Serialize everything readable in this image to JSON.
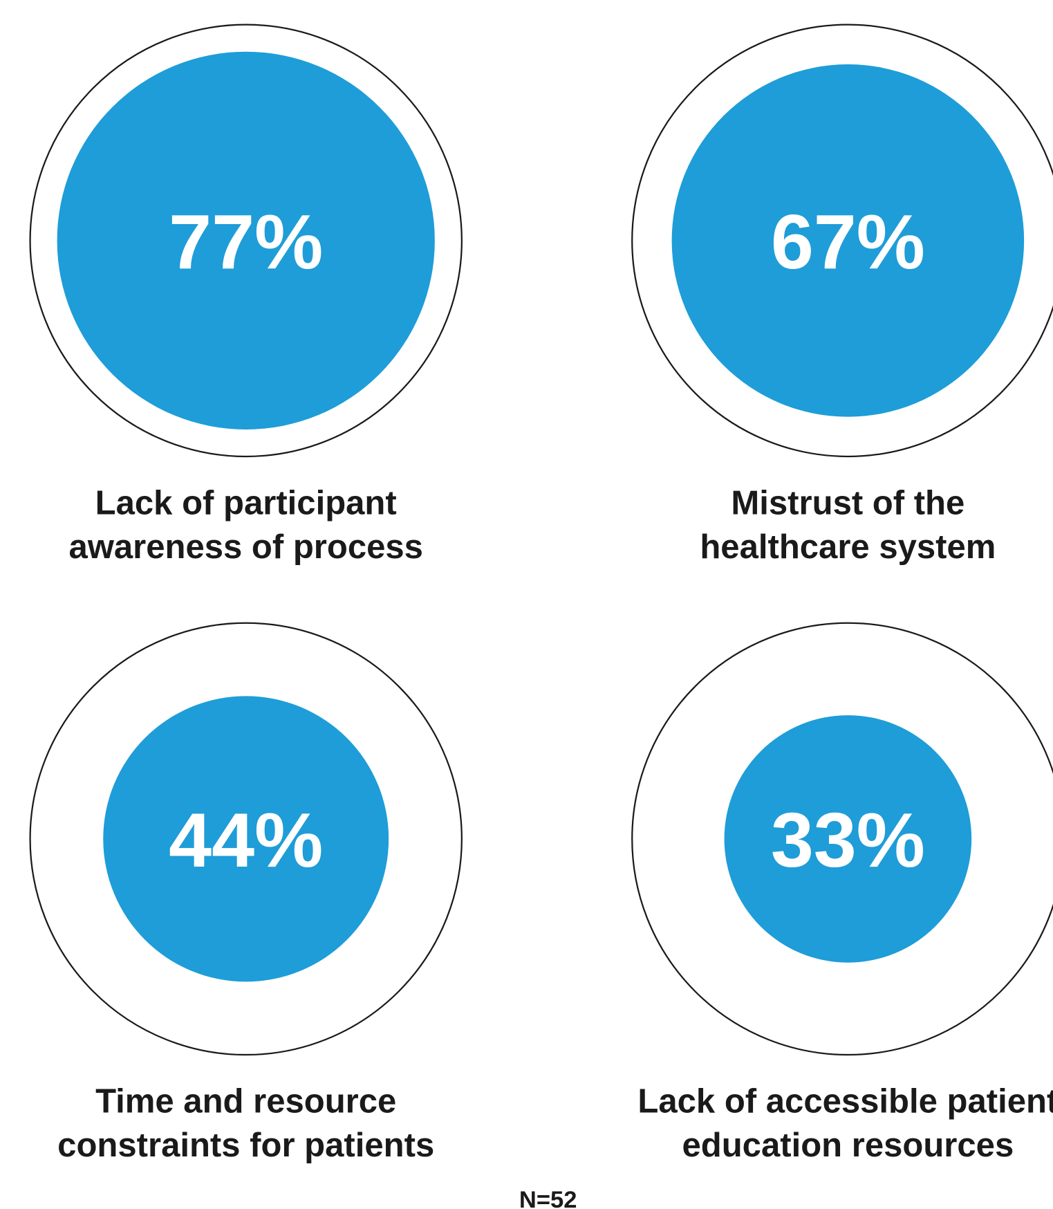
{
  "chart_data": {
    "type": "bubble",
    "categories": [
      [
        "Lack of participant",
        "awareness of process"
      ],
      [
        "Mistrust of the",
        "healthcare system"
      ],
      [
        "Time and resource",
        "constraints for patients"
      ],
      [
        "Lack of accessible patient",
        "education resources"
      ]
    ],
    "values": [
      77,
      67,
      44,
      33
    ],
    "value_labels": [
      "77%",
      "67%",
      "44%",
      "33%"
    ],
    "color": "#1e9dd8",
    "annotation": "N=52"
  }
}
